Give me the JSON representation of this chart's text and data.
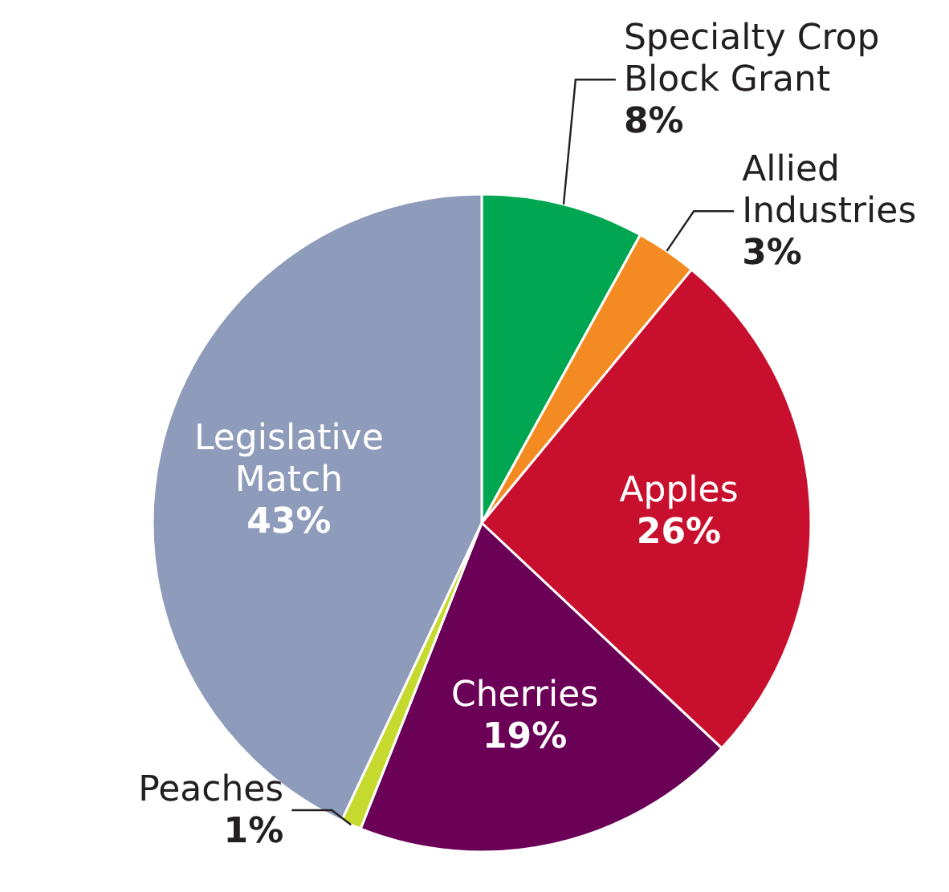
{
  "chart_data": {
    "type": "pie",
    "categories": [
      "Specialty Crop Block Grant",
      "Allied Industries",
      "Apples",
      "Cherries",
      "Peaches",
      "Legislative Match"
    ],
    "values": [
      8,
      3,
      26,
      19,
      1,
      43
    ],
    "colors": [
      "#00a651",
      "#f38b22",
      "#c8102e",
      "#6b0057",
      "#c6d92e",
      "#8e9bba"
    ],
    "value_labels": [
      "8%",
      "3%",
      "26%",
      "19%",
      "1%",
      "43%"
    ]
  }
}
